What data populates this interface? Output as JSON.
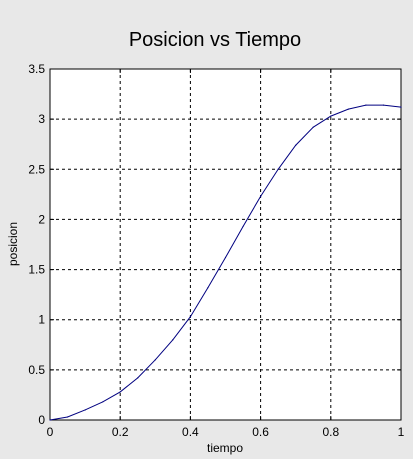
{
  "chart_data": {
    "type": "line",
    "title": "Posicion vs Tiempo",
    "xlabel": "tiempo",
    "ylabel": "posicion",
    "xlim": [
      0,
      1
    ],
    "ylim": [
      0,
      3.5
    ],
    "x_ticks": [
      "0",
      "0.2",
      "0.4",
      "0.6",
      "0.8",
      "1"
    ],
    "y_ticks": [
      "0",
      "0.5",
      "1",
      "1.5",
      "2",
      "2.5",
      "3",
      "3.5"
    ],
    "grid": true,
    "grid_style": "dashed",
    "background_color": "#e8e8e8",
    "plot_background_color": "#ffffff",
    "line_color": "#000080",
    "series": [
      {
        "x": [
          0,
          0.05,
          0.1,
          0.15,
          0.2,
          0.25,
          0.3,
          0.35,
          0.4,
          0.45,
          0.5,
          0.55,
          0.6,
          0.65,
          0.7,
          0.75,
          0.8,
          0.85,
          0.9,
          0.95,
          1.0
        ],
        "values": [
          0,
          0.03,
          0.1,
          0.18,
          0.28,
          0.42,
          0.6,
          0.8,
          1.03,
          1.32,
          1.62,
          1.93,
          2.23,
          2.5,
          2.74,
          2.92,
          3.03,
          3.1,
          3.14,
          3.14,
          3.12
        ]
      }
    ]
  }
}
